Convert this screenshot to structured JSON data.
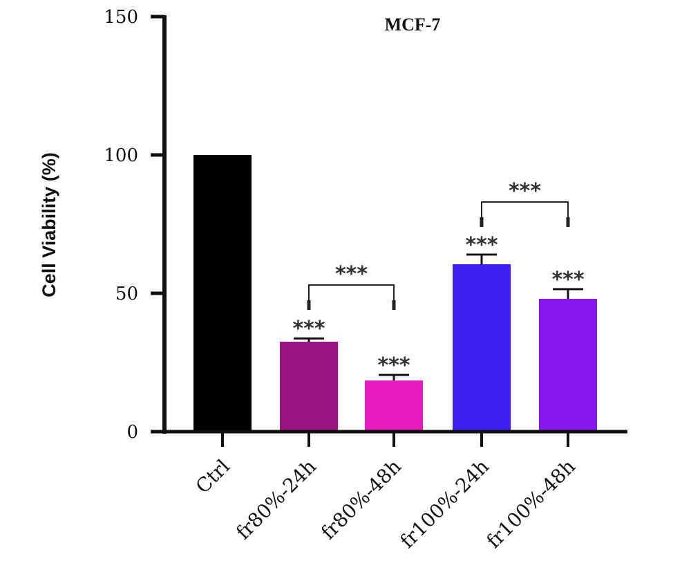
{
  "chart_data": {
    "type": "bar",
    "title": "MCF-7",
    "xlabel": "",
    "ylabel": "Cell Viability (%)",
    "ylim": [
      0,
      150
    ],
    "yticks": [
      0,
      50,
      100,
      150
    ],
    "categories": [
      "Ctrl",
      "fr80%-24h",
      "fr80%-48h",
      "fr100%-24h",
      "fr100%-48h"
    ],
    "values": [
      100,
      32.5,
      18.5,
      60.5,
      48
    ],
    "errors": [
      0,
      1.2,
      2,
      3.5,
      3.5
    ],
    "colors": [
      "#000000",
      "#9b1482",
      "#e81cbc",
      "#3a1ff0",
      "#8a16ef"
    ],
    "significance": [
      "",
      "***",
      "***",
      "***",
      "***"
    ],
    "comparisons": [
      {
        "from": 1,
        "to": 2,
        "label": "***",
        "level": 53
      },
      {
        "from": 3,
        "to": 4,
        "label": "***",
        "level": 83
      }
    ],
    "grid": false,
    "legend": "none"
  }
}
